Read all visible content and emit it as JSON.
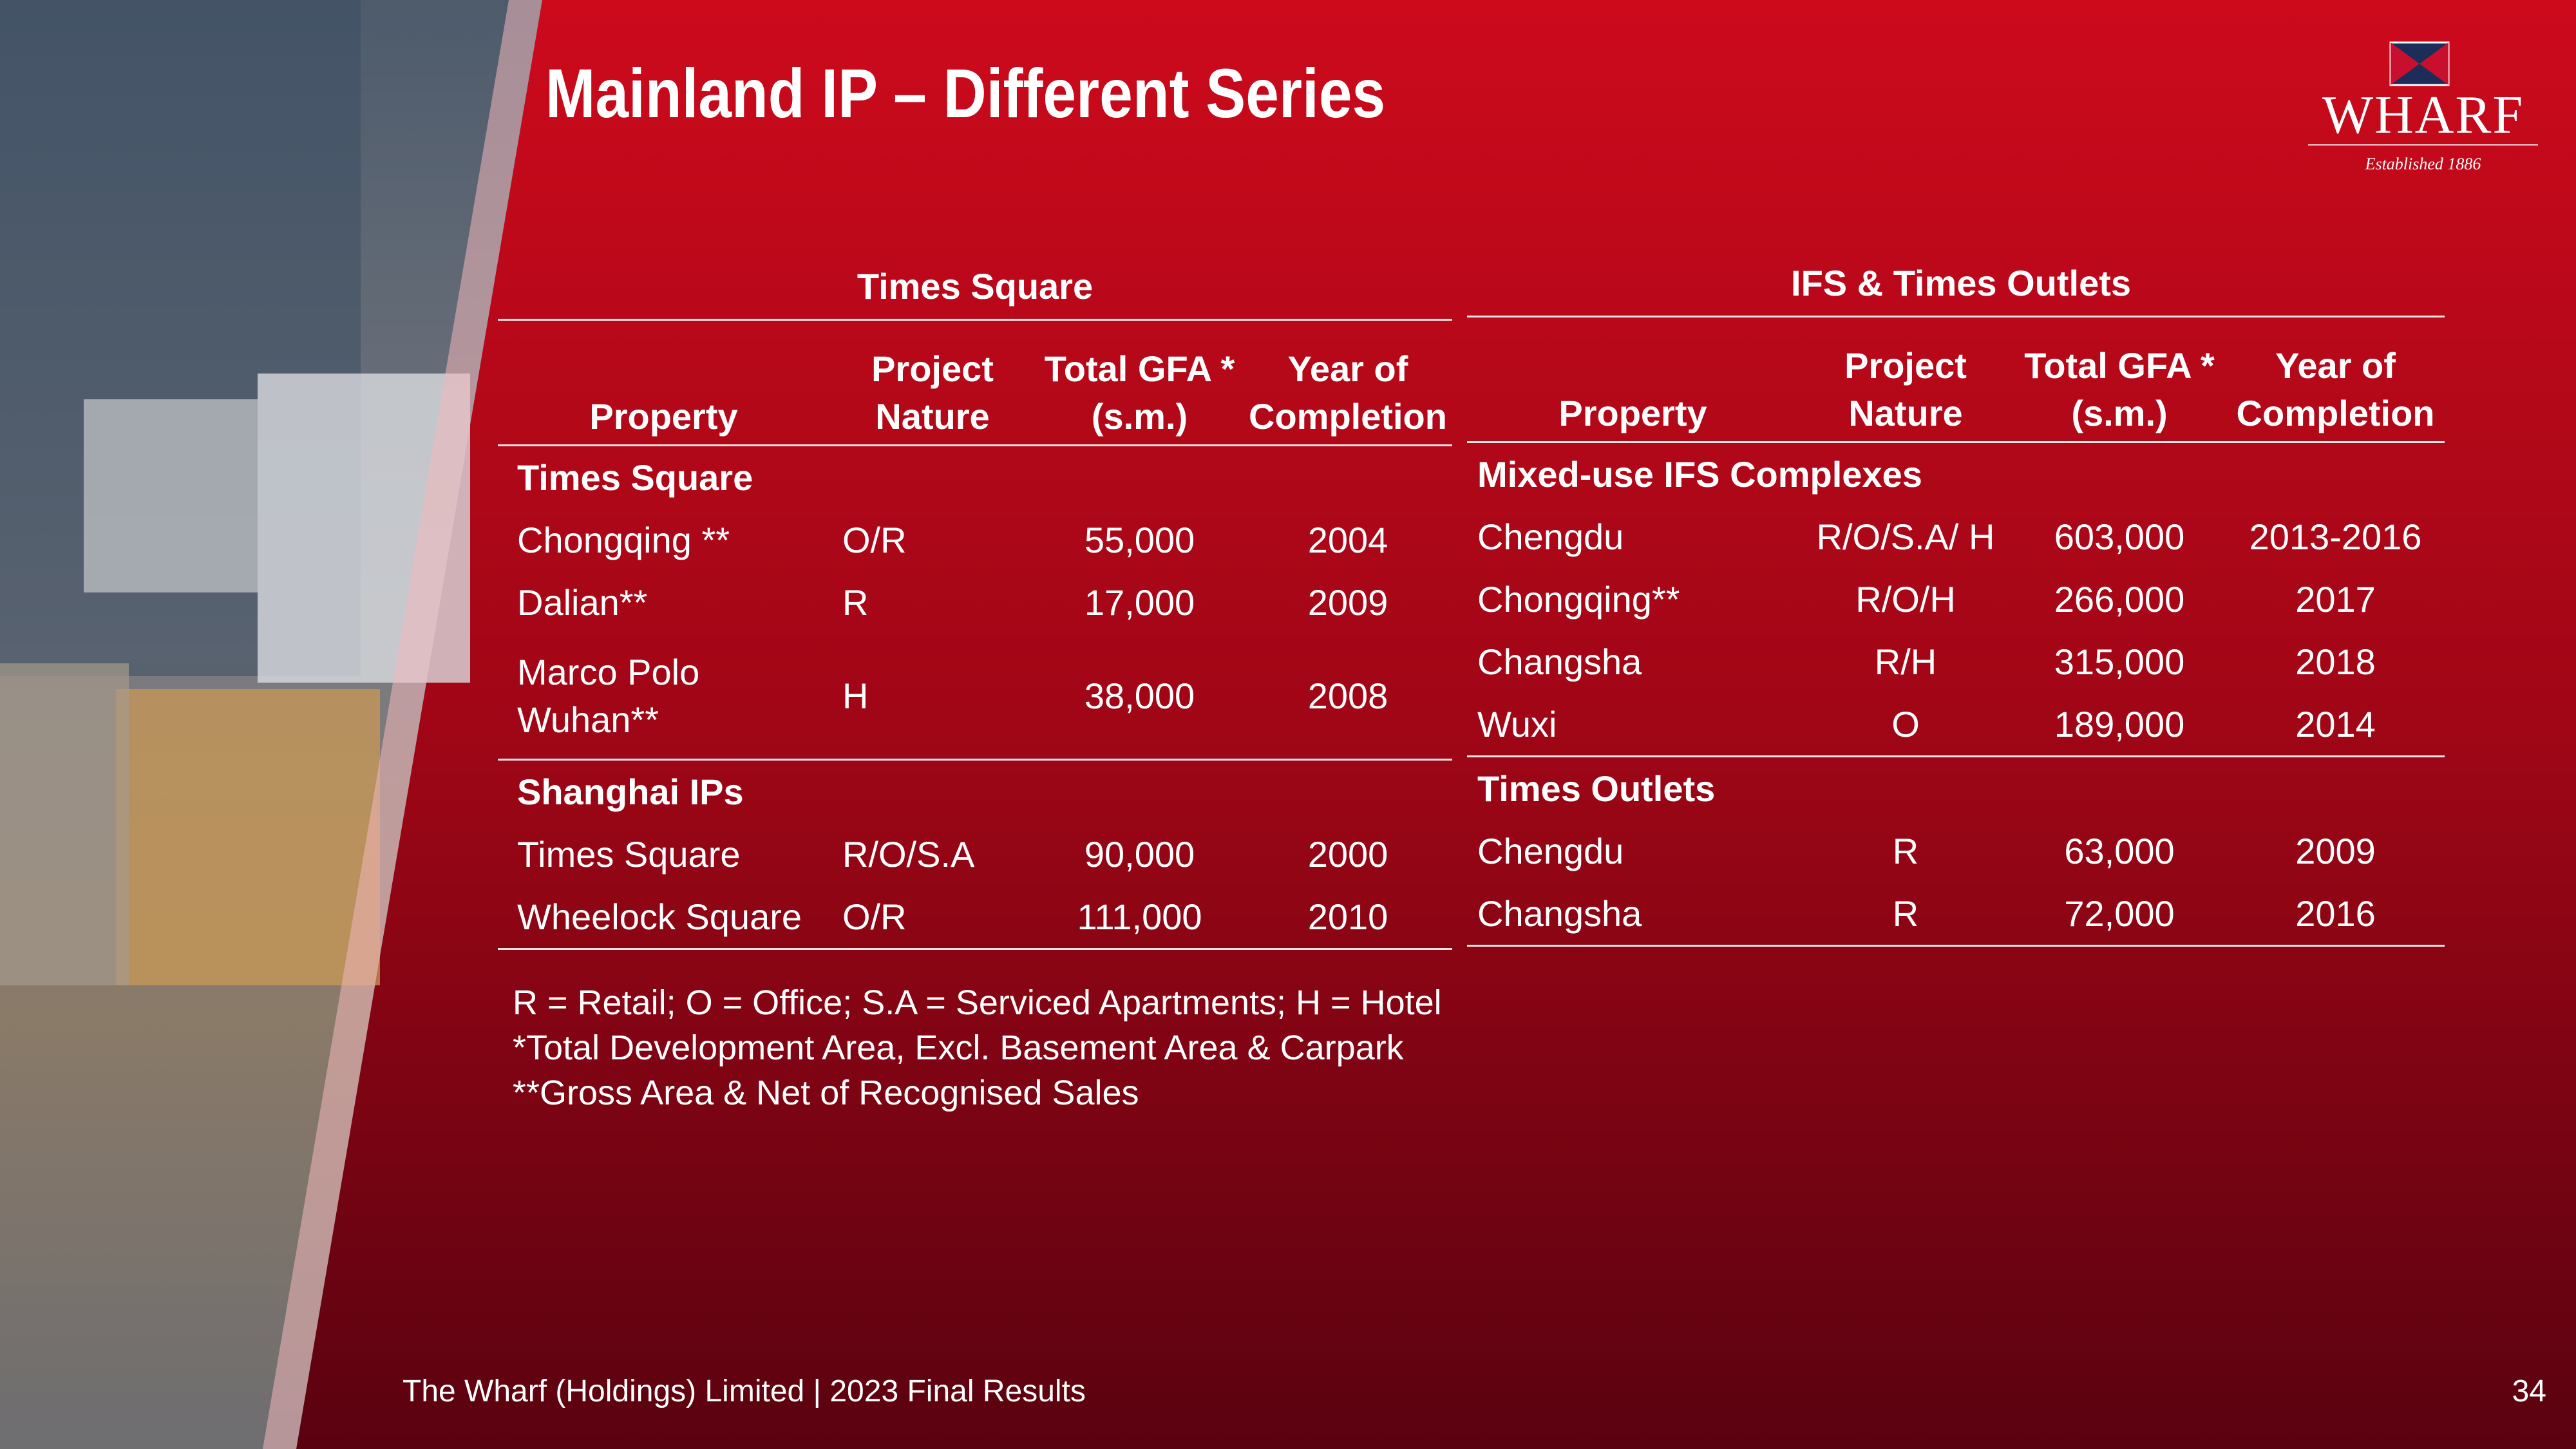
{
  "header": {
    "title": "Mainland IP – Different Series",
    "logo": "WHARF",
    "logo_tagline": "Established 1886"
  },
  "tables": [
    {
      "title": "Times Square",
      "columns": [
        "Property",
        "Project\nNature",
        "Total GFA *\n(s.m.)",
        "Year of\nCompletion"
      ],
      "sections": [
        {
          "name": "Times Square",
          "rows": [
            [
              "Chongqing **",
              "O/R",
              "55,000",
              "2004"
            ],
            [
              "Dalian**",
              "R",
              "17,000",
              "2009"
            ],
            [
              "Marco Polo\nWuhan**",
              "H",
              "38,000",
              "2008"
            ]
          ]
        },
        {
          "name": "Shanghai IPs",
          "rows": [
            [
              "Times Square",
              "R/O/S.A",
              "90,000",
              "2000"
            ],
            [
              "Wheelock Square",
              "O/R",
              "111,000",
              "2010"
            ]
          ]
        }
      ]
    },
    {
      "title": "IFS & Times Outlets",
      "columns": [
        "Property",
        "Project\nNature",
        "Total GFA *\n(s.m.)",
        "Year of\nCompletion"
      ],
      "sections": [
        {
          "name": "Mixed-use IFS Complexes",
          "rows": [
            [
              "Chengdu",
              "R/O/S.A/ H",
              "603,000",
              "2013-2016"
            ],
            [
              "Chongqing**",
              "R/O/H",
              "266,000",
              "2017"
            ],
            [
              "Changsha",
              "R/H",
              "315,000",
              "2018"
            ],
            [
              "Wuxi",
              "O",
              "189,000",
              "2014"
            ]
          ]
        },
        {
          "name": "Times Outlets",
          "rows": [
            [
              "Chengdu",
              "R",
              "63,000",
              "2009"
            ],
            [
              "Changsha",
              "R",
              "72,000",
              "2016"
            ]
          ]
        }
      ]
    }
  ],
  "notes": [
    "R = Retail; O = Office; S.A = Serviced Apartments; H = Hotel",
    "*Total Development Area, Excl. Basement Area & Carpark",
    "**Gross Area & Net of Recognised Sales"
  ],
  "footer": {
    "text": "The Wharf (Holdings) Limited | 2023 Final Results",
    "page": "34"
  }
}
